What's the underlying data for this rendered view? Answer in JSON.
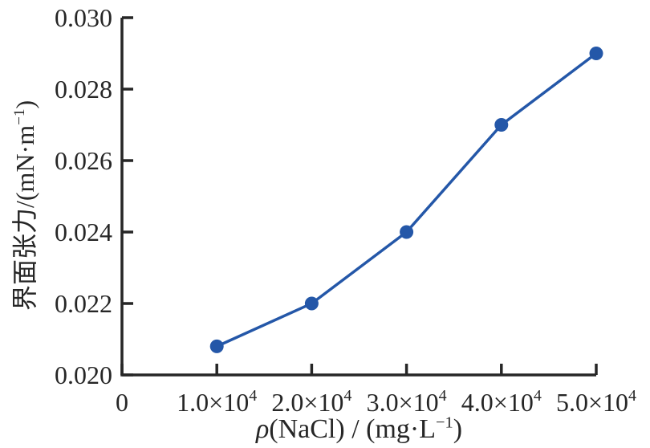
{
  "chart_data": {
    "type": "line",
    "xlabel": "ρ(NaCl) / (mg·L⁻¹)",
    "ylabel": "界面张力/(mN·m⁻¹)",
    "xlabel_parts": [
      {
        "t": "ρ",
        "style": "italic"
      },
      {
        "t": "(NaCl) / (mg·L"
      },
      {
        "t": "−1",
        "style": "sup"
      },
      {
        "t": ")"
      }
    ],
    "ylabel_parts": [
      {
        "t": "界面张力/(mN·m"
      },
      {
        "t": "−1",
        "style": "sup"
      },
      {
        "t": ")"
      }
    ],
    "x": [
      10000,
      20000,
      30000,
      40000,
      50000
    ],
    "y": [
      0.0208,
      0.022,
      0.024,
      0.027,
      0.029
    ],
    "xlim": [
      0,
      50000
    ],
    "ylim": [
      0.02,
      0.03
    ],
    "x_ticks": [
      {
        "value": 0,
        "label": "0",
        "exp": ""
      },
      {
        "value": 10000,
        "label": "1.0×10",
        "exp": "4"
      },
      {
        "value": 20000,
        "label": "2.0×10",
        "exp": "4"
      },
      {
        "value": 30000,
        "label": "3.0×10",
        "exp": "4"
      },
      {
        "value": 40000,
        "label": "4.0×10",
        "exp": "4"
      },
      {
        "value": 50000,
        "label": "5.0×10",
        "exp": "4"
      }
    ],
    "y_ticks": [
      {
        "value": 0.02,
        "label": "0.020"
      },
      {
        "value": 0.022,
        "label": "0.022"
      },
      {
        "value": 0.024,
        "label": "0.024"
      },
      {
        "value": 0.026,
        "label": "0.026"
      },
      {
        "value": 0.028,
        "label": "0.028"
      },
      {
        "value": 0.03,
        "label": "0.030"
      }
    ],
    "grid": false,
    "legend": "none",
    "marker": "circle",
    "colors": {
      "line": "#2457a8",
      "marker": "#2457a8",
      "axis": "#262626",
      "text": "#262626",
      "background": "#ffffff"
    }
  }
}
